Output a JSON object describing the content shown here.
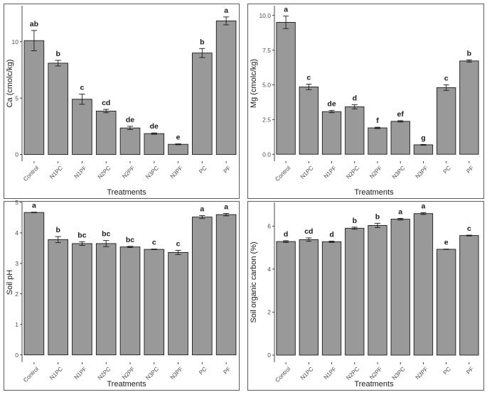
{
  "figure": {
    "description_title": ""
  },
  "colors": {
    "bar_fill": "#999999",
    "bar_stroke": "#1a1a1a",
    "text": "#1a1a1a",
    "axis_text": "#4d4d4d",
    "panel_border": "#333333"
  },
  "chart_data": [
    {
      "type": "bar",
      "categories": [
        "Control",
        "N1PC",
        "N1PF",
        "N2PC",
        "N2PF",
        "N3PC",
        "N3PF",
        "PC",
        "PF"
      ],
      "values": [
        10.1,
        8.1,
        4.9,
        3.85,
        2.35,
        1.85,
        0.9,
        9.0,
        11.85
      ],
      "errors": [
        0.9,
        0.25,
        0.45,
        0.15,
        0.15,
        0.06,
        0.04,
        0.4,
        0.35
      ],
      "letters": [
        "ab",
        "b",
        "c",
        "cd",
        "de",
        "de",
        "e",
        "b",
        "a"
      ],
      "title": "",
      "xlabel": "Treatments",
      "ylabel": "Ca (cmolc/kg)",
      "ylim": [
        -0.6,
        13.2
      ],
      "yticks": [
        0,
        5,
        10
      ],
      "ytick_labels": [
        "0",
        "5",
        "10"
      ],
      "grid": false
    },
    {
      "type": "bar",
      "categories": [
        "Control",
        "N1PC",
        "N1PF",
        "N2PC",
        "N2PF",
        "N3PC",
        "N3PF",
        "PC",
        "PF"
      ],
      "values": [
        9.5,
        4.85,
        3.07,
        3.42,
        1.9,
        2.37,
        0.68,
        4.8,
        6.72
      ],
      "errors": [
        0.45,
        0.2,
        0.08,
        0.15,
        0.05,
        0.05,
        0.03,
        0.2,
        0.08
      ],
      "letters": [
        "a",
        "c",
        "de",
        "d",
        "f",
        "ef",
        "g",
        "c",
        "b"
      ],
      "title": "",
      "xlabel": "Treatments",
      "ylabel": "Mg (cmolc/kg)",
      "ylim": [
        -0.5,
        10.7
      ],
      "yticks": [
        0,
        2.5,
        5,
        7.5,
        10
      ],
      "ytick_labels": [
        "0.0",
        "2.5",
        "5.0",
        "7.5",
        "10.0"
      ],
      "grid": false
    },
    {
      "type": "bar",
      "categories": [
        "Control",
        "N1PC",
        "N1PF",
        "N2PC",
        "N2PF",
        "N3PC",
        "N3PF",
        "PC",
        "PF"
      ],
      "values": [
        4.67,
        3.78,
        3.65,
        3.65,
        3.54,
        3.46,
        3.36,
        4.52,
        4.6
      ],
      "errors": [
        0.01,
        0.1,
        0.06,
        0.1,
        0.02,
        0.01,
        0.07,
        0.05,
        0.04
      ],
      "letters": [
        "a",
        "b",
        "bc",
        "bc",
        "bc",
        "c",
        "c",
        "a",
        "a"
      ],
      "title": "",
      "xlabel": "Treatments",
      "ylabel": "Soil pH",
      "ylim": [
        -0.24,
        5.0
      ],
      "yticks": [
        0,
        1,
        2,
        3,
        4,
        5
      ],
      "ytick_labels": [
        "0",
        "1",
        "2",
        "3",
        "4",
        "5"
      ],
      "grid": false
    },
    {
      "type": "bar",
      "categories": [
        "Control",
        "N1PC",
        "N1PF",
        "N2PC",
        "N2PF",
        "N3PC",
        "N3PF",
        "PC",
        "PF"
      ],
      "values": [
        5.28,
        5.37,
        5.27,
        5.9,
        6.03,
        6.32,
        6.58,
        4.92,
        5.56
      ],
      "errors": [
        0.04,
        0.08,
        0.03,
        0.05,
        0.1,
        0.04,
        0.04,
        0.01,
        0.02
      ],
      "letters": [
        "d",
        "cd",
        "d",
        "b",
        "b",
        "a",
        "a",
        "e",
        "c"
      ],
      "title": "",
      "xlabel": "Treatments",
      "ylabel": "Soil organic carbon (%)",
      "ylim": [
        -0.33,
        7.1
      ],
      "yticks": [
        0,
        2,
        4,
        6
      ],
      "ytick_labels": [
        "0",
        "2",
        "4",
        "6"
      ],
      "grid": false
    }
  ]
}
